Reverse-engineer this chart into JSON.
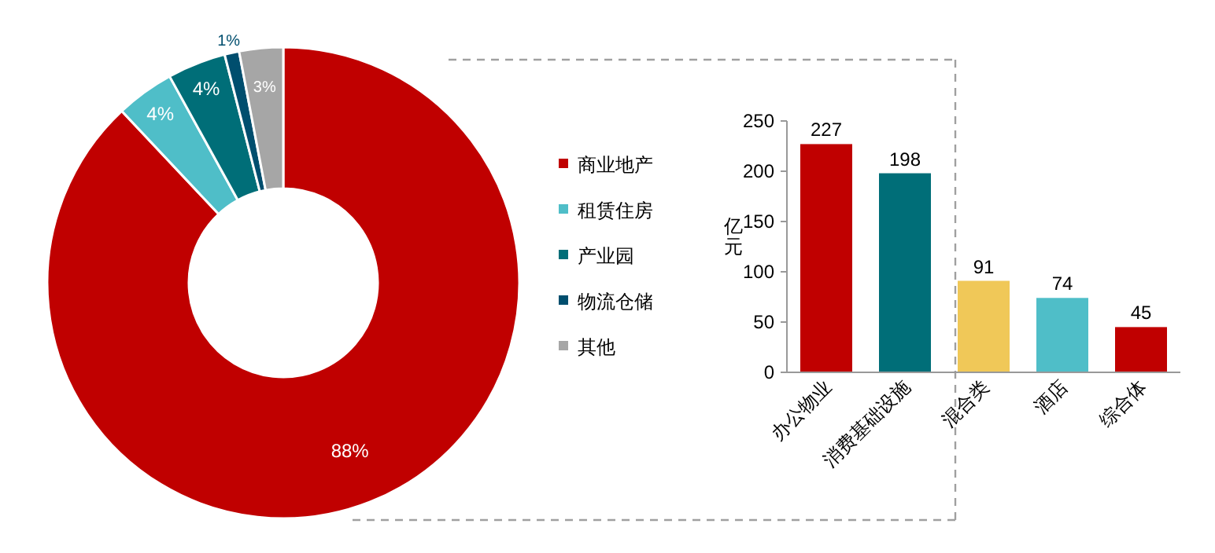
{
  "chart_data": [
    {
      "type": "donut",
      "categories": [
        "商业地产",
        "租赁住房",
        "产业园",
        "物流仓储",
        "其他"
      ],
      "values": [
        88,
        4,
        4,
        1,
        3
      ],
      "colors": [
        "#c00000",
        "#4fbec8",
        "#006e78",
        "#004e6e",
        "#a6a6a6"
      ],
      "value_labels": [
        "88%",
        "4%",
        "4%",
        "1%",
        "3%"
      ],
      "legend": "right"
    },
    {
      "type": "bar",
      "ylabel": "亿元",
      "categories": [
        "办公物业",
        "消费基础设施",
        "混合类",
        "酒店",
        "综合体"
      ],
      "values": [
        227,
        198,
        91,
        74,
        45
      ],
      "colors": [
        "#c00000",
        "#006e78",
        "#f0c858",
        "#4fbec8",
        "#c00000"
      ],
      "ylim": [
        0,
        250
      ],
      "yticks": [
        0,
        50,
        100,
        150,
        200,
        250
      ],
      "data_labels": true
    }
  ]
}
